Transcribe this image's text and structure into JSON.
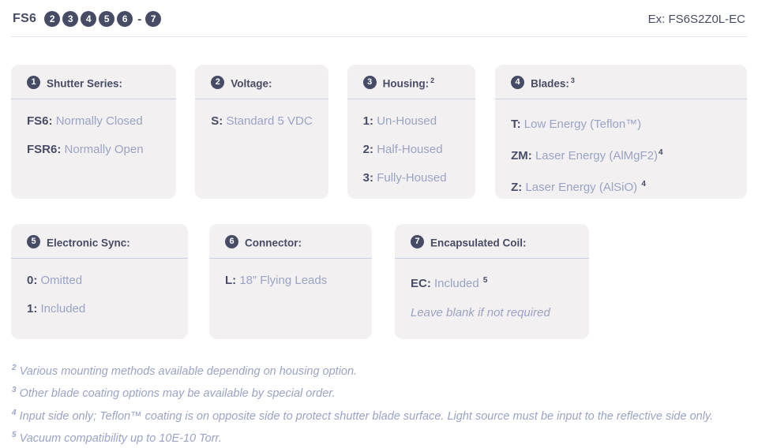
{
  "header": {
    "prefix": "FS6",
    "positions": [
      "2",
      "3",
      "4",
      "5",
      "6"
    ],
    "separator": "-",
    "final_position": "7",
    "example": "Ex: FS6S2Z0L-EC"
  },
  "cards": [
    {
      "number": "1",
      "title": "Shutter Series:",
      "title_sup": "",
      "items": [
        {
          "code": "FS6:",
          "text": "Normally Closed",
          "sup": ""
        },
        {
          "code": "FSR6:",
          "text": "Normally Open",
          "sup": ""
        }
      ]
    },
    {
      "number": "2",
      "title": "Voltage:",
      "title_sup": "",
      "items": [
        {
          "code": "S:",
          "text": "Standard 5 VDC",
          "sup": ""
        }
      ]
    },
    {
      "number": "3",
      "title": "Housing:",
      "title_sup": "2",
      "items": [
        {
          "code": "1:",
          "text": "Un-Housed",
          "sup": ""
        },
        {
          "code": "2:",
          "text": "Half-Housed",
          "sup": ""
        },
        {
          "code": "3:",
          "text": "Fully-Housed",
          "sup": ""
        }
      ]
    },
    {
      "number": "4",
      "title": "Blades:",
      "title_sup": "3",
      "items": [
        {
          "code": "T:",
          "text": "Low Energy (Teflon™)",
          "sup": ""
        },
        {
          "code": "ZM:",
          "text": "Laser Energy (AlMgF2)",
          "sup": "4"
        },
        {
          "code": "Z:",
          "text": "Laser Energy (AlSiO)",
          "sup": "4"
        }
      ]
    },
    {
      "number": "5",
      "title": "Electronic Sync:",
      "title_sup": "",
      "items": [
        {
          "code": "0:",
          "text": "Omitted",
          "sup": ""
        },
        {
          "code": "1:",
          "text": "Included",
          "sup": ""
        }
      ]
    },
    {
      "number": "6",
      "title": "Connector:",
      "title_sup": "",
      "items": [
        {
          "code": "L:",
          "text": "18” Flying Leads",
          "sup": ""
        }
      ]
    },
    {
      "number": "7",
      "title": "Encapsulated Coil:",
      "title_sup": "",
      "items": [
        {
          "code": "EC:",
          "text": "Included",
          "sup": "5"
        }
      ],
      "note": "Leave blank if not required"
    }
  ],
  "footnotes": [
    {
      "sup": "2",
      "text": "Various mounting methods available depending on housing option."
    },
    {
      "sup": "3",
      "text": "Other blade coating options may be available by special order."
    },
    {
      "sup": "4",
      "text": "Input side only; Teflon™ coating is on opposite side to protect shutter blade surface. Light source must be input to the reflective side only."
    },
    {
      "sup": "5",
      "text": "Vacuum compatibility up to 10E-10 Torr."
    }
  ],
  "colors": {
    "navy": "#474c66",
    "light_text": "#9aa3c6",
    "card_bg": "#f2f0f1",
    "divider": "#c9cfe0"
  }
}
